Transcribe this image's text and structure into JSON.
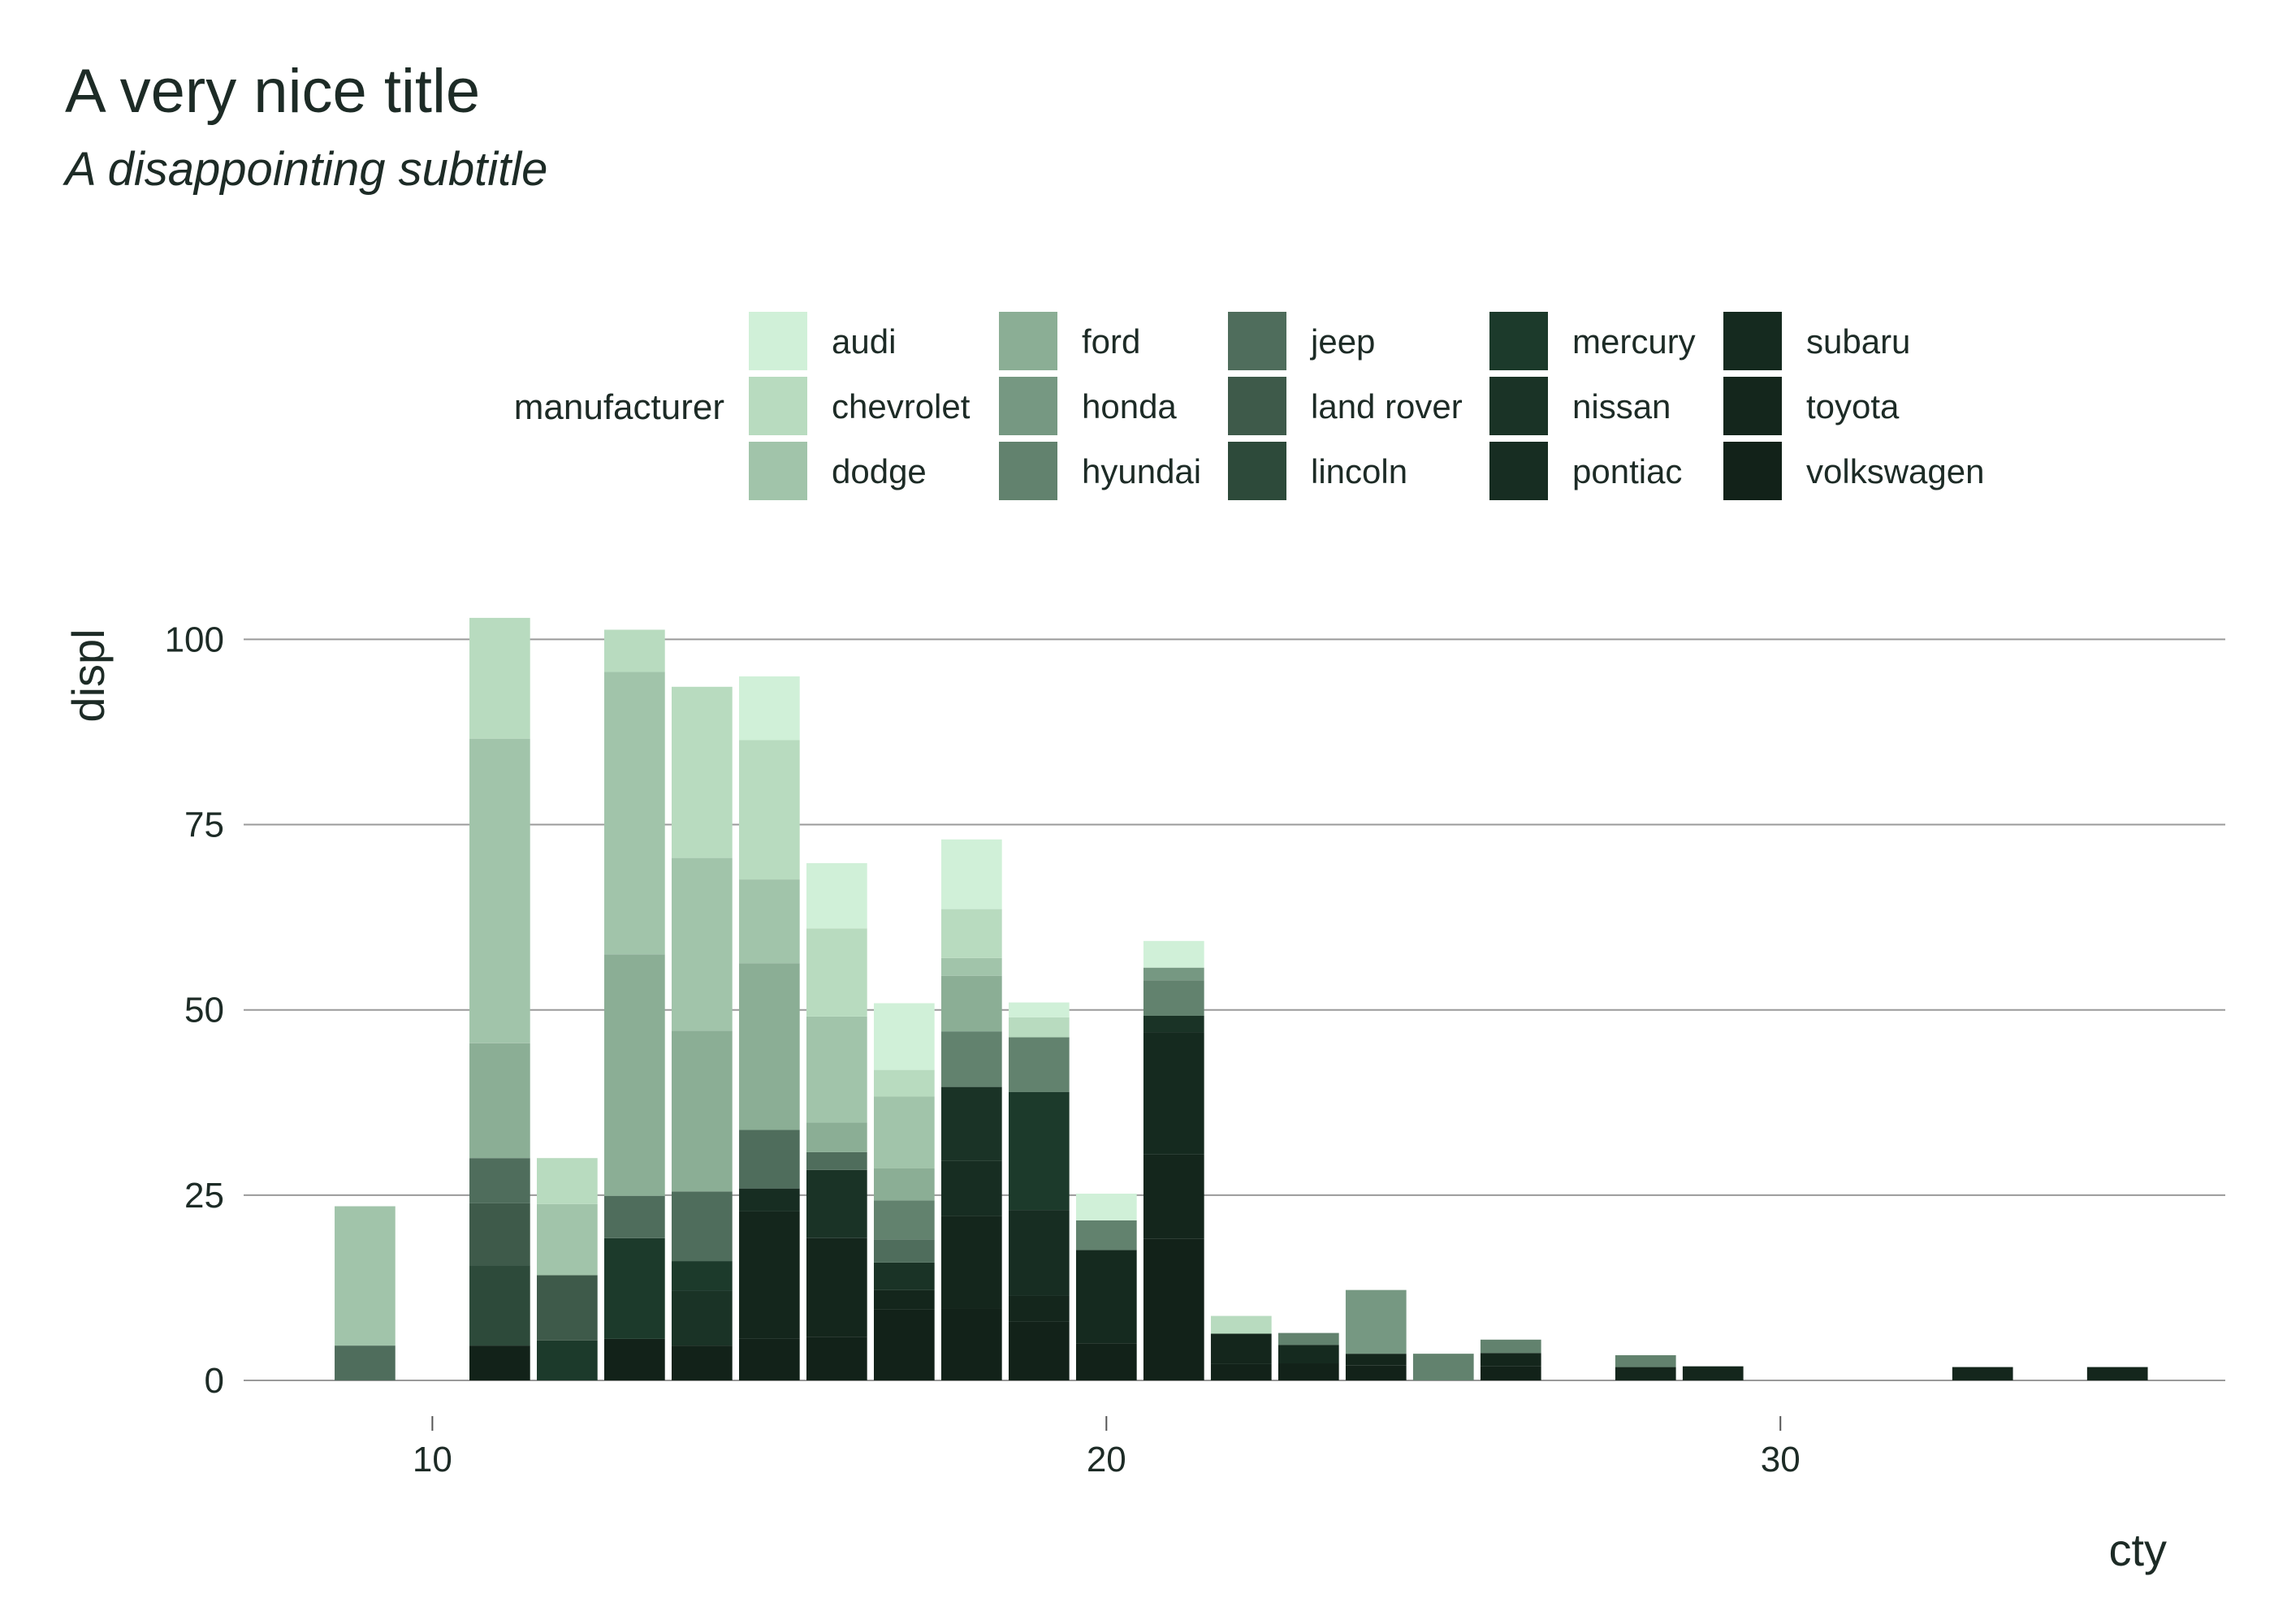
{
  "chart_data": {
    "type": "bar",
    "stacked": true,
    "title": "A very nice title",
    "subtitle": "A disappointing subtitle",
    "xlabel": "cty",
    "ylabel": "displ",
    "xlim": [
      7.2,
      36.6
    ],
    "ylim": [
      0,
      103
    ],
    "x_ticks": [
      10,
      20,
      30
    ],
    "y_ticks": [
      0,
      25,
      50,
      75,
      100
    ],
    "grid": "horizontal",
    "bar_width": 0.9,
    "legend": {
      "title": "manufacturer",
      "placement": "top",
      "columns": 5,
      "rows": 3
    },
    "x": [
      9,
      11,
      12,
      13,
      14,
      15,
      16,
      17,
      18,
      19,
      20,
      21,
      22,
      23,
      24,
      25,
      26,
      28,
      29,
      33,
      35
    ],
    "series": [
      {
        "name": "audi",
        "color": "#d0f0d8",
        "values": [
          0,
          0,
          0,
          0,
          0,
          8.6,
          8.8,
          9.0,
          9.4,
          2.0,
          3.6,
          3.6,
          0,
          0,
          0,
          0,
          0,
          0,
          0,
          0,
          0
        ]
      },
      {
        "name": "chevrolet",
        "color": "#b8dbbf",
        "values": [
          0,
          16.3,
          6.2,
          5.7,
          23.1,
          18.8,
          11.9,
          3.6,
          6.6,
          2.7,
          0,
          0,
          2.4,
          0,
          0,
          0,
          0,
          0,
          0,
          0,
          0
        ]
      },
      {
        "name": "dodge",
        "color": "#a1c4aa",
        "values": [
          18.8,
          41.1,
          9.6,
          38.1,
          23.3,
          11.3,
          14.3,
          9.7,
          2.4,
          0,
          0,
          0,
          0,
          0,
          0,
          0,
          0,
          0,
          0,
          0,
          0
        ]
      },
      {
        "name": "ford",
        "color": "#8bae95",
        "values": [
          0,
          15.5,
          0,
          32.6,
          21.7,
          22.5,
          4.0,
          4.3,
          7.5,
          0,
          0,
          0,
          0,
          0,
          0,
          0,
          0,
          0,
          0,
          0,
          0
        ]
      },
      {
        "name": "honda",
        "color": "#769882",
        "values": [
          0,
          0,
          0,
          0,
          0,
          0,
          0,
          0,
          0,
          0,
          0,
          1.7,
          0,
          0,
          8.6,
          0,
          0,
          0,
          0,
          0,
          0
        ]
      },
      {
        "name": "hyundai",
        "color": "#62826e",
        "values": [
          0,
          0,
          0,
          0,
          0,
          0,
          0,
          5.3,
          7.5,
          7.4,
          4.0,
          4.8,
          0,
          1.6,
          0,
          3.6,
          1.8,
          1.6,
          0,
          0,
          0
        ]
      },
      {
        "name": "jeep",
        "color": "#4f6d5c",
        "values": [
          4.7,
          6.1,
          0,
          5.7,
          9.4,
          7.9,
          2.4,
          3.1,
          0,
          0,
          0,
          0,
          0,
          0,
          0,
          0,
          0,
          0,
          0,
          0,
          0
        ]
      },
      {
        "name": "land rover",
        "color": "#3e5a4a",
        "values": [
          0,
          8.4,
          8.8,
          0,
          0,
          0,
          0,
          0,
          0,
          0,
          0,
          0,
          0,
          0,
          0,
          0,
          0,
          0,
          0,
          0,
          0
        ]
      },
      {
        "name": "lincoln",
        "color": "#2d4a3a",
        "values": [
          0,
          10.8,
          0,
          0,
          0,
          0,
          0,
          0,
          0,
          0,
          0,
          0,
          0,
          0,
          0,
          0,
          0,
          0,
          0,
          0,
          0
        ]
      },
      {
        "name": "mercury",
        "color": "#1c3a2b",
        "values": [
          0,
          0,
          5.4,
          13.6,
          4.0,
          0,
          0,
          0,
          0,
          15.9,
          0,
          0,
          0,
          0,
          0,
          0,
          0,
          0,
          0,
          0,
          0
        ]
      },
      {
        "name": "nissan",
        "color": "#1a3326",
        "values": [
          0,
          0,
          0,
          0,
          7.4,
          0,
          9.2,
          3.7,
          10.0,
          0,
          0,
          2.2,
          0,
          0,
          0,
          0,
          0,
          0,
          0,
          0,
          0
        ]
      },
      {
        "name": "pontiac",
        "color": "#172d22",
        "values": [
          0,
          0,
          0,
          0,
          0,
          3.1,
          0,
          0,
          7.4,
          11.6,
          0,
          0,
          0,
          0,
          0,
          0,
          0,
          0,
          0,
          0,
          0
        ]
      },
      {
        "name": "subaru",
        "color": "#152a1f",
        "values": [
          0,
          0,
          0,
          0,
          0,
          0,
          0,
          0,
          0,
          0,
          12.6,
          16.5,
          0,
          2.5,
          0,
          0,
          0,
          0,
          0,
          0,
          0
        ]
      },
      {
        "name": "toyota",
        "color": "#14261c",
        "values": [
          0,
          0,
          0,
          0,
          0,
          17.2,
          13.3,
          2.6,
          12.5,
          3.5,
          0,
          11.4,
          4.1,
          0,
          1.6,
          0,
          1.8,
          1.8,
          1.9,
          1.8,
          1.8
        ]
      },
      {
        "name": "volkswagen",
        "color": "#122219",
        "values": [
          0,
          4.7,
          0,
          5.6,
          4.7,
          5.6,
          5.9,
          9.6,
          9.7,
          7.9,
          5.0,
          19.1,
          2.2,
          2.3,
          2.0,
          0,
          1.9,
          0,
          0,
          0,
          0
        ]
      }
    ]
  }
}
